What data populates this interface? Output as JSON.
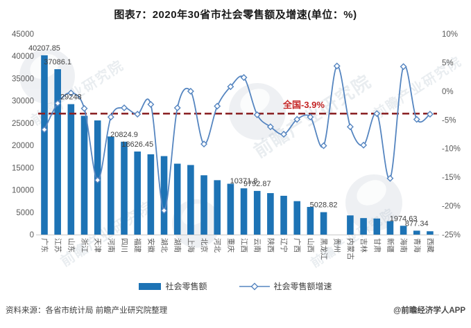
{
  "title": "图表7：2020年30省市社会零售额及增速(单位：%)",
  "watermark": "前瞻产业研究院",
  "footer": {
    "source": "资料来源：各省市统计局 前瞻产业研究院整理",
    "credit": "@前瞻经济学人APP"
  },
  "colors": {
    "bar": "#1d73b5",
    "line": "#5585c0",
    "dashed": "#8b2326",
    "annotation": "#c42323",
    "axis_text": "#595959",
    "label_text": "#404040"
  },
  "chart_data": {
    "type": "bar+line",
    "title": "图表7：2020年30省市社会零售额及增速(单位：%)",
    "categories": [
      "广东",
      "江苏",
      "山东",
      "浙江",
      "天津",
      "河南",
      "四川",
      "福建",
      "安徽",
      "湖北",
      "湖南",
      "上海",
      "北京",
      "河北",
      "重庆",
      "江西",
      "云南",
      "陕西",
      "辽宁",
      "广西",
      "山西",
      "黑龙江",
      "贵州",
      "内蒙古",
      "吉林",
      "甘肃",
      "新疆",
      "海南",
      "青海",
      "西藏"
    ],
    "series": [
      {
        "name": "社会零售额",
        "type": "bar",
        "axis": "left",
        "values": [
          40207.85,
          37086.1,
          29248,
          26630,
          25600,
          22000,
          20824.9,
          18626.45,
          18000,
          17600,
          15900,
          15600,
          13300,
          12200,
          11400,
          10371.8,
          9792.87,
          9300,
          8700,
          7500,
          6200,
          5028.82,
          0,
          4300,
          3700,
          3600,
          3000,
          1974.63,
          877.34,
          745
        ]
      },
      {
        "name": "社会零售额增速",
        "type": "line",
        "axis": "right",
        "unit": "%",
        "values": [
          -6.7,
          -2.1,
          -0.3,
          -3.0,
          -15.5,
          -4.5,
          -2.9,
          -4.0,
          -2.3,
          -20.8,
          -2.9,
          0.0,
          -9.2,
          -2.6,
          0.8,
          2.4,
          -4.1,
          -6.2,
          -7.5,
          -4.9,
          -4.5,
          -9.5,
          4.4,
          -6.2,
          -9.4,
          -3.9,
          -15.2,
          4.3,
          -4.9,
          -4.0
        ]
      }
    ],
    "bar_labels": [
      {
        "i": 0,
        "text": "40207.85"
      },
      {
        "i": 1,
        "text": "37086.1"
      },
      {
        "i": 2,
        "text": "29248"
      },
      {
        "i": 6,
        "text": "20824.9"
      },
      {
        "i": 7,
        "text": "18626.45"
      },
      {
        "i": 15,
        "text": "10371.8"
      },
      {
        "i": 16,
        "text": "9792.87"
      },
      {
        "i": 21,
        "text": "5028.82"
      },
      {
        "i": 27,
        "text": "1974.63"
      },
      {
        "i": 28,
        "text": "877.34"
      }
    ],
    "left_axis": {
      "min": 0,
      "max": 45000,
      "step": 5000,
      "ticks": [
        "45000",
        "40000",
        "35000",
        "30000",
        "25000",
        "20000",
        "15000",
        "10000",
        "5000",
        "0"
      ]
    },
    "right_axis": {
      "min": -25,
      "max": 10,
      "step": 5,
      "ticks": [
        "10%",
        "5%",
        "0%",
        "-5%",
        "-10%",
        "-15%",
        "-20%",
        "-25%"
      ]
    },
    "national": {
      "label": "全国-3.9%",
      "value": -3.9
    },
    "grid": false,
    "legend_position": "bottom"
  }
}
